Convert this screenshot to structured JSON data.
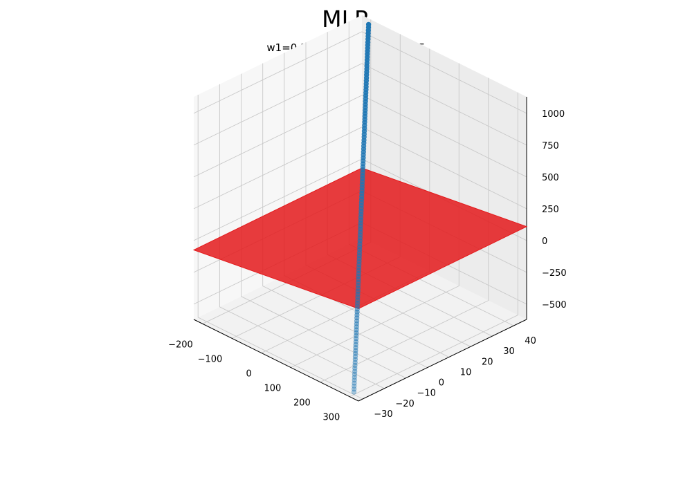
{
  "chart_data": {
    "type": "scatter",
    "title": "MLR",
    "subtitle": "w1=0.322w2=0.046, b=1.475",
    "xlabel": "",
    "ylabel": "",
    "zlabel": "",
    "xlim": [
      -230,
      330
    ],
    "ylim": [
      -32,
      46
    ],
    "zlim": [
      -620,
      1130
    ],
    "x_ticks": [
      -200,
      -100,
      0,
      100,
      200,
      300
    ],
    "y_ticks": [
      -30,
      -20,
      -10,
      0,
      10,
      20,
      30,
      40
    ],
    "z_ticks": [
      -500,
      -250,
      0,
      250,
      500,
      750,
      1000
    ],
    "x_tick_labels": [
      "−200",
      "−100",
      "0",
      "100",
      "200",
      "300"
    ],
    "y_tick_labels": [
      "−30",
      "−20",
      "−10",
      "0",
      "10",
      "20",
      "30",
      "40"
    ],
    "z_tick_labels": [
      "−500",
      "−250",
      "0",
      "250",
      "500",
      "750",
      "1000"
    ],
    "grid": true,
    "scatter": {
      "x_range": [
        -200,
        300
      ],
      "y_range": [
        -30,
        45
      ],
      "z_range": [
        -600,
        1100
      ],
      "count": 125,
      "color": "#1f77b4"
    },
    "plane": {
      "w1": 0.322,
      "w2": 0.046,
      "b": 1.475,
      "x_range": [
        -230,
        330
      ],
      "y_range": [
        -32,
        46
      ],
      "color": "#e41a1c"
    }
  }
}
